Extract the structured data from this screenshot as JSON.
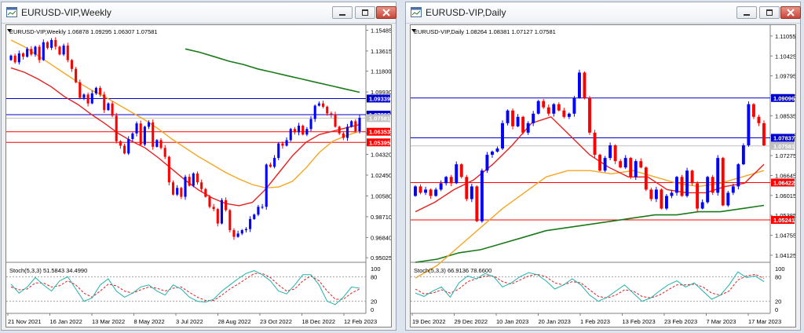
{
  "windows": [
    {
      "title": "EURUSD-VIP,Weekly",
      "header": "EURUSD-VIP,Weekly  1.06878 1.09295 1.06307 1.07581",
      "stoch_label": "Stoch(5,3,3) 51.5843 34.4990"
    },
    {
      "title": "EURUSD-VIP,Daily",
      "header": "EURUSD-VIP,Daily  1.08264 1.08381 1.07127 1.07581",
      "stoch_label": "Stoch(5,3,3) 66.9136 78.6600"
    }
  ],
  "chart_data": [
    {
      "type": "candlestick",
      "title": "EURUSD-VIP,Weekly",
      "ylim": [
        0.9475,
        1.158
      ],
      "y_ticks": [
        "1.15485",
        "1.13615",
        "1.11800",
        "1.09930",
        "1.08115",
        "1.06245",
        "1.04320",
        "1.02450",
        "1.00580",
        "0.98710",
        "0.96840",
        "0.95025"
      ],
      "x_ticks": [
        "21 Nov 2021",
        "16 Jan 2022",
        "13 Mar 2022",
        "8 May 2022",
        "3 Jul 2022",
        "28 Aug 2022",
        "23 Oct 2022",
        "18 Dec 2022",
        "12 Feb 2023"
      ],
      "hlines": [
        {
          "value": 1.09339,
          "label": "1.09339",
          "color": "#0000cc"
        },
        {
          "value": 1.07893,
          "label": "1.07893",
          "color": "#0000cc"
        },
        {
          "value": 1.07581,
          "label": "1.07581",
          "color": "#c0c0c0"
        },
        {
          "value": 1.06353,
          "label": "1.06353",
          "color": "#ff0000"
        },
        {
          "value": 1.05395,
          "label": "1.05395",
          "color": "#ff0000"
        }
      ],
      "candles": [
        [
          1.128,
          1.132
        ],
        [
          1.132,
          1.126
        ],
        [
          1.126,
          1.134
        ],
        [
          1.134,
          1.131
        ],
        [
          1.131,
          1.138
        ],
        [
          1.138,
          1.133
        ],
        [
          1.133,
          1.14
        ],
        [
          1.14,
          1.128
        ],
        [
          1.128,
          1.144
        ],
        [
          1.144,
          1.139
        ],
        [
          1.139,
          1.146
        ],
        [
          1.146,
          1.14
        ],
        [
          1.14,
          1.133
        ],
        [
          1.133,
          1.141
        ],
        [
          1.141,
          1.128
        ],
        [
          1.128,
          1.12
        ],
        [
          1.12,
          1.108
        ],
        [
          1.108,
          1.094
        ],
        [
          1.094,
          1.097
        ],
        [
          1.097,
          1.089
        ],
        [
          1.089,
          1.098
        ],
        [
          1.098,
          1.103
        ],
        [
          1.103,
          1.097
        ],
        [
          1.097,
          1.083
        ],
        [
          1.083,
          1.089
        ],
        [
          1.089,
          1.078
        ],
        [
          1.078,
          1.055
        ],
        [
          1.055,
          1.051
        ],
        [
          1.051,
          1.044
        ],
        [
          1.044,
          1.057
        ],
        [
          1.057,
          1.062
        ],
        [
          1.062,
          1.071
        ],
        [
          1.071,
          1.052
        ],
        [
          1.052,
          1.068
        ],
        [
          1.068,
          1.072
        ],
        [
          1.072,
          1.05
        ],
        [
          1.05,
          1.056
        ],
        [
          1.056,
          1.049
        ],
        [
          1.049,
          1.041
        ],
        [
          1.041,
          1.018
        ],
        [
          1.018,
          1.007
        ],
        [
          1.007,
          1.013
        ],
        [
          1.013,
          1.005
        ],
        [
          1.005,
          1.023
        ],
        [
          1.023,
          1.015
        ],
        [
          1.015,
          1.026
        ],
        [
          1.026,
          1.018
        ],
        [
          1.018,
          1.012
        ],
        [
          1.012,
          1.005
        ],
        [
          1.005,
          0.996
        ],
        [
          0.996,
          0.994
        ],
        [
          0.994,
          0.981
        ],
        [
          0.981,
          1.002
        ],
        [
          1.002,
          0.993
        ],
        [
          0.993,
          0.975
        ],
        [
          0.975,
          0.969
        ],
        [
          0.969,
          0.972
        ],
        [
          0.972,
          0.975
        ],
        [
          0.975,
          0.976
        ],
        [
          0.976,
          0.985
        ],
        [
          0.985,
          0.989
        ],
        [
          0.989,
          0.996
        ],
        [
          0.996,
          0.996
        ],
        [
          0.996,
          1.034
        ],
        [
          1.034,
          1.032
        ],
        [
          1.032,
          1.04
        ],
        [
          1.04,
          1.053
        ],
        [
          1.053,
          1.051
        ],
        [
          1.051,
          1.056
        ],
        [
          1.056,
          1.066
        ],
        [
          1.066,
          1.063
        ],
        [
          1.063,
          1.069
        ],
        [
          1.069,
          1.061
        ],
        [
          1.061,
          1.066
        ],
        [
          1.066,
          1.075
        ],
        [
          1.075,
          1.087
        ],
        [
          1.087,
          1.089
        ],
        [
          1.089,
          1.086
        ],
        [
          1.086,
          1.08
        ],
        [
          1.08,
          1.079
        ],
        [
          1.079,
          1.068
        ],
        [
          1.068,
          1.062
        ],
        [
          1.062,
          1.058
        ],
        [
          1.058,
          1.068
        ],
        [
          1.068,
          1.073
        ],
        [
          1.073,
          1.064
        ],
        [
          1.064,
          1.076
        ]
      ],
      "ma_red": [
        1.121,
        1.117,
        1.111,
        1.104,
        1.095,
        1.088,
        1.079,
        1.071,
        1.062,
        1.055,
        1.049,
        1.04,
        1.03,
        1.02,
        1.011,
        1.004,
        0.999,
        0.997,
        1.0,
        1.012,
        1.027,
        1.042,
        1.054,
        1.061,
        1.064,
        1.067,
        1.07
      ],
      "ma_orange": [
        1.146,
        1.14,
        1.132,
        1.124,
        1.116,
        1.108,
        1.101,
        1.095,
        1.088,
        1.081,
        1.074,
        1.066,
        1.057,
        1.049,
        1.041,
        1.034,
        1.027,
        1.021,
        1.016,
        1.013,
        1.014,
        1.019,
        1.031,
        1.045,
        1.055,
        1.06,
        1.064
      ],
      "ma_green": [
        1.138,
        1.135,
        1.131,
        1.127,
        1.124,
        1.12,
        1.117,
        1.114,
        1.111,
        1.108,
        1.105,
        1.102,
        1.099
      ],
      "stoch_main": [
        62,
        40,
        55,
        78,
        60,
        45,
        70,
        80,
        50,
        20,
        28,
        60,
        75,
        45,
        30,
        40,
        55,
        60,
        45,
        35,
        60,
        50,
        30,
        20,
        18,
        25,
        45,
        60,
        75,
        88,
        95,
        85,
        70,
        45,
        38,
        60,
        85,
        85,
        60,
        20,
        12,
        30,
        55,
        52
      ],
      "stoch_signal": [
        55,
        48,
        50,
        65,
        65,
        55,
        58,
        70,
        60,
        40,
        30,
        45,
        62,
        58,
        45,
        40,
        48,
        55,
        52,
        45,
        52,
        55,
        42,
        30,
        22,
        22,
        35,
        50,
        62,
        75,
        88,
        88,
        78,
        60,
        45,
        50,
        70,
        82,
        70,
        45,
        25,
        25,
        40,
        50
      ],
      "stoch_levels": [
        80,
        20
      ],
      "stoch_ticks": [
        "100",
        "80",
        "20",
        "0"
      ]
    },
    {
      "type": "candlestick",
      "title": "EURUSD-VIP,Daily",
      "ylim": [
        1.0395,
        1.1135
      ],
      "y_ticks": [
        "1.11055",
        "1.10425",
        "1.09795",
        "1.09165",
        "1.08535",
        "1.07905",
        "1.07275",
        "1.06645",
        "1.06015",
        "1.05385",
        "1.04755",
        "1.04125"
      ],
      "x_ticks": [
        "19 Dec 2022",
        "29 Dec 2022",
        "10 Jan 2023",
        "20 Jan 2023",
        "1 Feb 2023",
        "13 Feb 2023",
        "23 Feb 2023",
        "7 Mar 2023",
        "17 Mar 2023"
      ],
      "hlines": [
        {
          "value": 1.09096,
          "label": "1.09096",
          "color": "#0000cc"
        },
        {
          "value": 1.07837,
          "label": "1.07837",
          "color": "#0000cc"
        },
        {
          "value": 1.07581,
          "label": "1.07581",
          "color": "#c0c0c0"
        },
        {
          "value": 1.06422,
          "label": "1.06422",
          "color": "#ff0000"
        },
        {
          "value": 1.05241,
          "label": "1.05241",
          "color": "#ff0000"
        }
      ],
      "candles": [
        [
          1.06,
          1.063
        ],
        [
          1.063,
          1.061
        ],
        [
          1.061,
          1.062
        ],
        [
          1.062,
          1.06
        ],
        [
          1.06,
          1.062
        ],
        [
          1.062,
          1.064
        ],
        [
          1.064,
          1.066
        ],
        [
          1.066,
          1.064
        ],
        [
          1.064,
          1.07
        ],
        [
          1.07,
          1.066
        ],
        [
          1.066,
          1.059
        ],
        [
          1.059,
          1.063
        ],
        [
          1.063,
          1.052
        ],
        [
          1.052,
          1.068
        ],
        [
          1.068,
          1.073
        ],
        [
          1.073,
          1.074
        ],
        [
          1.074,
          1.075
        ],
        [
          1.075,
          1.083
        ],
        [
          1.083,
          1.087
        ],
        [
          1.087,
          1.082
        ],
        [
          1.082,
          1.085
        ],
        [
          1.085,
          1.08
        ],
        [
          1.08,
          1.083
        ],
        [
          1.083,
          1.086
        ],
        [
          1.086,
          1.09
        ],
        [
          1.09,
          1.088
        ],
        [
          1.088,
          1.086
        ],
        [
          1.086,
          1.089
        ],
        [
          1.089,
          1.087
        ],
        [
          1.087,
          1.085
        ],
        [
          1.085,
          1.086
        ],
        [
          1.086,
          1.091
        ],
        [
          1.091,
          1.099
        ],
        [
          1.099,
          1.091
        ],
        [
          1.091,
          1.08
        ],
        [
          1.08,
          1.073
        ],
        [
          1.073,
          1.068
        ],
        [
          1.068,
          1.072
        ],
        [
          1.072,
          1.076
        ],
        [
          1.076,
          1.071
        ],
        [
          1.071,
          1.069
        ],
        [
          1.069,
          1.072
        ],
        [
          1.072,
          1.066
        ],
        [
          1.066,
          1.071
        ],
        [
          1.071,
          1.069
        ],
        [
          1.069,
          1.062
        ],
        [
          1.062,
          1.059
        ],
        [
          1.059,
          1.062
        ],
        [
          1.062,
          1.056
        ],
        [
          1.056,
          1.06
        ],
        [
          1.06,
          1.061
        ],
        [
          1.061,
          1.066
        ],
        [
          1.066,
          1.06
        ],
        [
          1.06,
          1.068
        ],
        [
          1.068,
          1.064
        ],
        [
          1.064,
          1.056
        ],
        [
          1.056,
          1.058
        ],
        [
          1.058,
          1.066
        ],
        [
          1.066,
          1.061
        ],
        [
          1.061,
          1.072
        ],
        [
          1.072,
          1.057
        ],
        [
          1.057,
          1.061
        ],
        [
          1.061,
          1.063
        ],
        [
          1.063,
          1.07
        ],
        [
          1.07,
          1.076
        ],
        [
          1.076,
          1.089
        ],
        [
          1.089,
          1.085
        ],
        [
          1.085,
          1.083
        ],
        [
          1.083,
          1.076
        ]
      ],
      "ma_red": [
        1.055,
        1.058,
        1.062,
        1.065,
        1.07,
        1.076,
        1.083,
        1.085,
        1.079,
        1.073,
        1.069,
        1.066,
        1.066,
        1.062,
        1.061,
        1.061,
        1.063,
        1.064,
        1.07
      ],
      "ma_orange": [
        1.034,
        1.038,
        1.044,
        1.05,
        1.056,
        1.061,
        1.066,
        1.068,
        1.068,
        1.067,
        1.068,
        1.066,
        1.064,
        1.063,
        1.064,
        1.066,
        1.068
      ],
      "ma_green": [
        1.039,
        1.04,
        1.042,
        1.043,
        1.045,
        1.047,
        1.049,
        1.05,
        1.051,
        1.052,
        1.053,
        1.054,
        1.054,
        1.055,
        1.055,
        1.056,
        1.057
      ],
      "stoch_main": [
        40,
        32,
        45,
        55,
        30,
        65,
        82,
        75,
        88,
        80,
        55,
        65,
        80,
        90,
        85,
        70,
        50,
        60,
        75,
        60,
        35,
        20,
        30,
        45,
        60,
        40,
        20,
        28,
        45,
        60,
        70,
        55,
        65,
        45,
        25,
        35,
        60,
        92,
        78,
        82,
        68
      ],
      "stoch_signal": [
        50,
        38,
        40,
        48,
        40,
        50,
        68,
        75,
        82,
        82,
        68,
        62,
        72,
        82,
        86,
        80,
        65,
        60,
        68,
        65,
        48,
        32,
        28,
        35,
        48,
        45,
        32,
        28,
        35,
        48,
        60,
        60,
        62,
        55,
        40,
        35,
        45,
        72,
        82,
        86,
        76
      ],
      "stoch_levels": [
        80,
        20
      ],
      "stoch_ticks": [
        "100",
        "80",
        "20",
        "0"
      ]
    }
  ]
}
